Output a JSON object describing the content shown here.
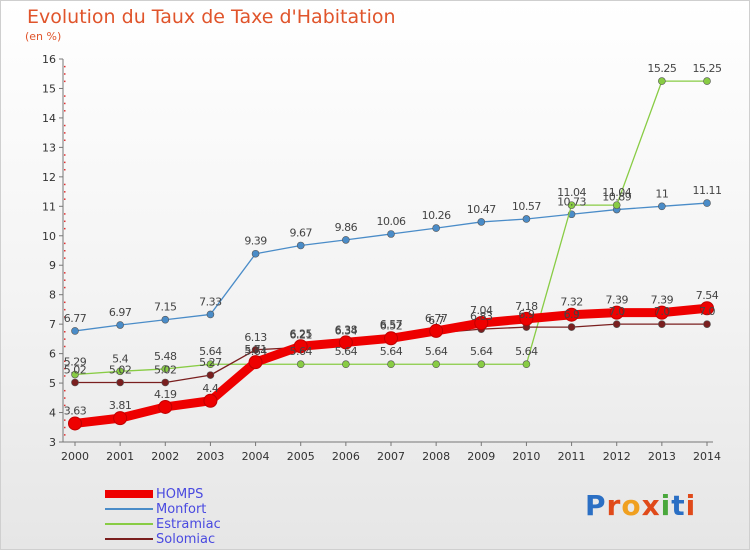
{
  "header": {
    "title": "Evolution du Taux de Taxe d'Habitation",
    "unit": "(en %)"
  },
  "logo": {
    "text": "Proxiti"
  },
  "chart_data": {
    "type": "line",
    "title": "Evolution du Taux de Taxe d'Habitation",
    "ylabel": "(en %)",
    "xlabel": "",
    "x": [
      "2000",
      "2001",
      "2002",
      "2003",
      "2004",
      "2005",
      "2006",
      "2007",
      "2008",
      "2009",
      "2010",
      "2011",
      "2012",
      "2013",
      "2014"
    ],
    "ylim": [
      3,
      16
    ],
    "yticks": [
      "3",
      "4",
      "5",
      "6",
      "7",
      "8",
      "9",
      "10",
      "11",
      "12",
      "13",
      "14",
      "15",
      "16"
    ],
    "grid": false,
    "legend": "bottom-left",
    "series": [
      {
        "name": "HOMPS",
        "color": "#ee0000",
        "values": [
          3.63,
          3.81,
          4.19,
          4.4,
          5.71,
          6.25,
          6.38,
          6.52,
          6.77,
          7.04,
          7.18,
          7.32,
          7.39,
          7.39,
          7.54
        ],
        "labels": [
          "3.63",
          "3.81",
          "4.19",
          "4.4",
          "5.71",
          "6.25",
          "6.38",
          "6.52",
          "6.77",
          "7.04",
          "7.18",
          "7.32",
          "7.39",
          "7.39",
          "7.54"
        ]
      },
      {
        "name": "Monfort",
        "color": "#4a8cc8",
        "values": [
          6.77,
          6.97,
          7.15,
          7.33,
          9.39,
          9.67,
          9.86,
          10.06,
          10.26,
          10.47,
          10.57,
          10.73,
          10.89,
          11,
          11.11
        ],
        "labels": [
          "6.77",
          "6.97",
          "7.15",
          "7.33",
          "9.39",
          "9.67",
          "9.86",
          "10.06",
          "10.26",
          "10.47",
          "10.57",
          "10.73",
          "10.89",
          "11",
          "11.11"
        ]
      },
      {
        "name": "Estramiac",
        "color": "#88cc44",
        "values": [
          5.29,
          5.4,
          5.48,
          5.64,
          5.64,
          5.64,
          5.64,
          5.64,
          5.64,
          5.64,
          5.64,
          11.04,
          11.04,
          15.25,
          15.25
        ],
        "labels": [
          "5.29",
          "5.4",
          "5.48",
          "5.64",
          "5.64",
          "5.64",
          "5.64",
          "5.64",
          "5.64",
          "5.64",
          "5.64",
          "11.04",
          "11.04",
          "15.25",
          "15.25"
        ]
      },
      {
        "name": "Solomiac",
        "color": "#7a1f1f",
        "values": [
          5.02,
          5.02,
          5.02,
          5.27,
          6.13,
          6.21,
          6.34,
          6.57,
          6.7,
          6.83,
          6.9,
          6.9,
          7.0,
          7.0,
          7.0
        ],
        "labels": [
          "5.02",
          "5.02",
          "5.02",
          "5.27",
          "6.13",
          "6.21",
          "6.34",
          "6.57",
          "6.7",
          "6.83",
          "6.9",
          "6.9",
          "7.0",
          "7.0",
          "7.0"
        ]
      }
    ]
  }
}
